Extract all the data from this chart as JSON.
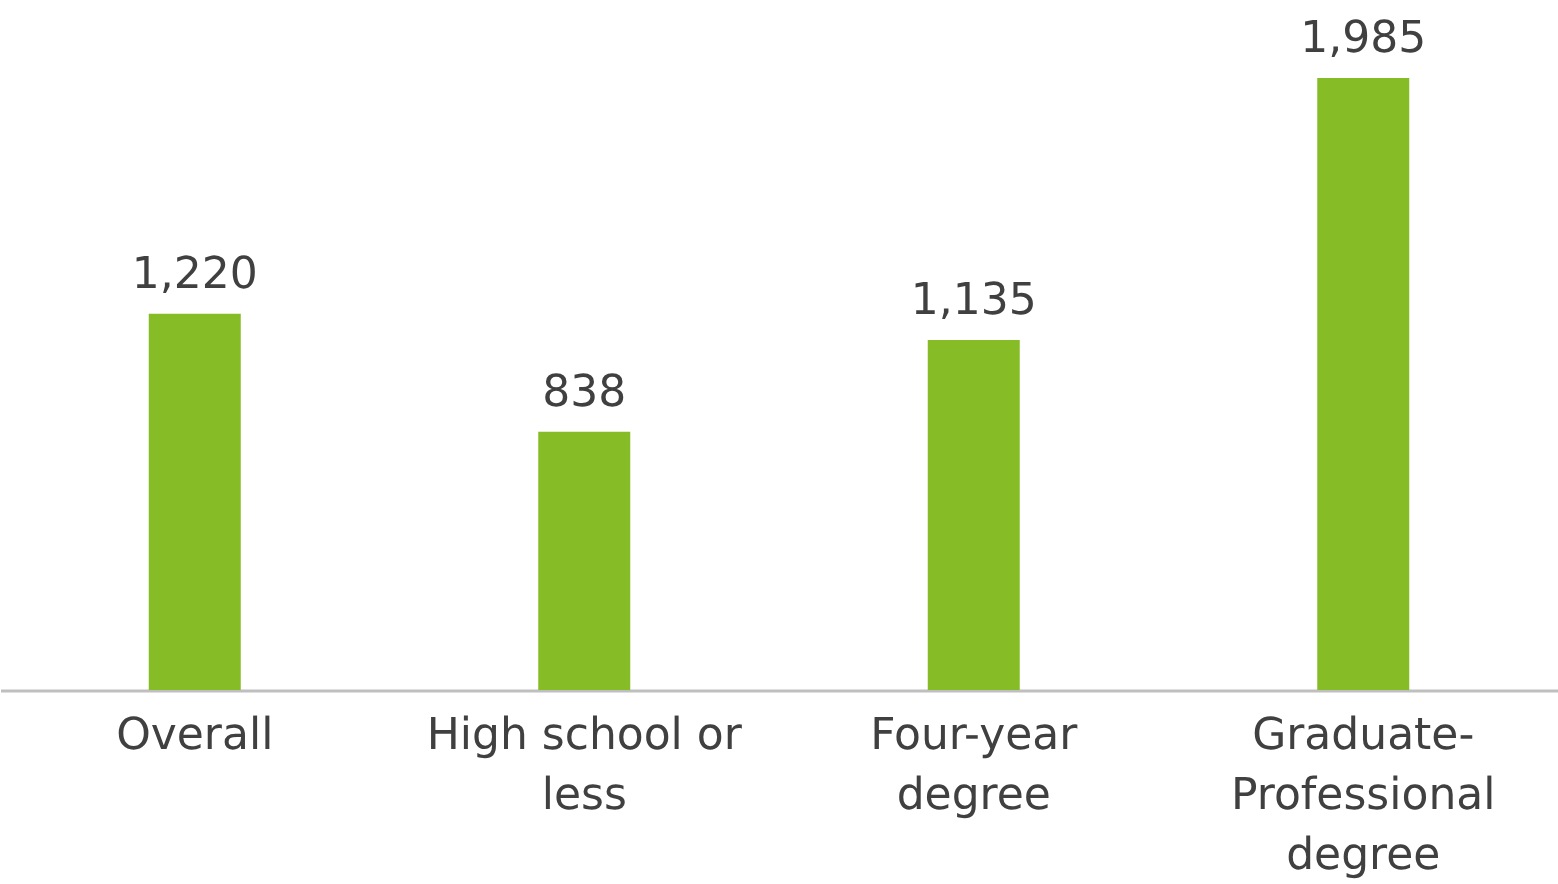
{
  "chart_data": {
    "type": "bar",
    "categories": [
      "Overall",
      "High school or less",
      "Four-year degree",
      "Graduate-Professional degree"
    ],
    "values": [
      1220,
      838,
      1135,
      1985
    ],
    "color": "#86bc25",
    "value_labels": [
      "1,220",
      "838",
      "1,135",
      "1,985"
    ]
  }
}
